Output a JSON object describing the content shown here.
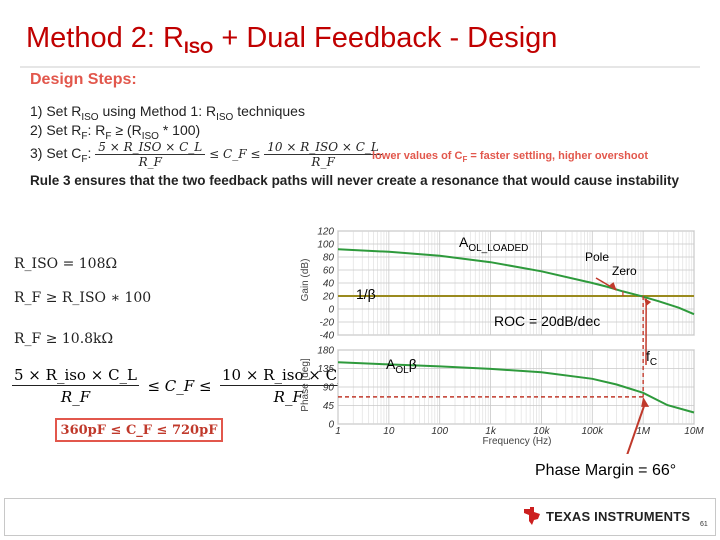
{
  "title": {
    "main": "Method 2: R",
    "sub": "ISO",
    "rest": " + Dual Feedback - Design"
  },
  "steps": {
    "heading": "Design Steps:",
    "step1": {
      "a": "1) Set R",
      "sub1": "ISO",
      "b": " using Method 1: R",
      "sub2": "ISO",
      "c": " techniques"
    },
    "step2": {
      "a": "2)  Set R",
      "sub1": "F",
      "b": ": R",
      "sub2": "F",
      "c": " ≥ (R",
      "sub3": "ISO",
      "d": " * 100)"
    },
    "step3": {
      "a": "3)  Set C",
      "sub1": "F",
      "colon": ":",
      "left_num": "5 × R_ISO × C_L",
      "left_den": "R_F",
      "mid": "≤ C_F ≤",
      "right_num": "10 × R_ISO × C_L",
      "right_den": "R_F"
    },
    "lower_values": "lower values of C",
    "lower_values_sub": "F",
    "lower_values_rest": " = faster settling, higher overshoot",
    "rule3": "Rule 3 ensures that the two feedback paths will never create a resonance that would cause instability"
  },
  "math": {
    "riso": "R_ISO = 108Ω",
    "rf_ge": "R_F ≥ R_ISO ∗ 100",
    "rf_val": "R_F ≥ 10.8kΩ",
    "cf_left_num": "5 × R_iso × C_L",
    "cf_left_den": "R_F",
    "cf_mid": "≤ C_F ≤",
    "cf_right_num": "10 × R_iso × C_L",
    "cf_right_den": "R_F",
    "result": "360pF  ≤  C_F  ≤  720pF"
  },
  "chart_data": [
    {
      "type": "line",
      "title": "",
      "ylabel": "Gain (dB)",
      "yticks": [
        "120",
        "100",
        "80",
        "60",
        "40",
        "20",
        "0",
        "-20",
        "-40"
      ],
      "ylim": [
        -40,
        120
      ],
      "xlim": [
        1,
        10000000
      ],
      "x_scale": "log",
      "grid": true,
      "series": [
        {
          "name": "AOL_LOADED",
          "color": "#2e9a3c",
          "x": [
            1,
            10,
            100,
            1000,
            10000,
            100000,
            200000,
            400000,
            800000,
            1000000,
            2000000,
            5000000,
            10000000
          ],
          "y": [
            92,
            88,
            82,
            72,
            58,
            40,
            34,
            27,
            21,
            19,
            12,
            2,
            -8
          ]
        },
        {
          "name": "1/β",
          "color": "#9a8a1e",
          "x": [
            1,
            10000000
          ],
          "y": [
            20,
            20
          ]
        }
      ]
    },
    {
      "type": "line",
      "title": "",
      "ylabel": "Phase [deg]",
      "xlabel": "Frequency (Hz)",
      "yticks": [
        "180",
        "135",
        "90",
        "45",
        "0"
      ],
      "ylim": [
        0,
        180
      ],
      "xticks": [
        "1",
        "10",
        "100",
        "1k",
        "10k",
        "100k",
        "1M",
        "10M"
      ],
      "xlim": [
        1,
        10000000
      ],
      "x_scale": "log",
      "grid": true,
      "series": [
        {
          "name": "AOLβ",
          "color": "#2e9a3c",
          "x": [
            1,
            10,
            100,
            1000,
            10000,
            100000,
            300000,
            1000000,
            3000000,
            10000000
          ],
          "y": [
            150,
            145,
            140,
            134,
            126,
            110,
            96,
            76,
            46,
            28
          ]
        }
      ]
    }
  ],
  "annotations": {
    "aol_loaded": "A",
    "aol_loaded_sub": "OL_LOADED",
    "pole": "Pole",
    "zero": "Zero",
    "one_over_beta": "1/β",
    "roc": "ROC = 20dB/dec",
    "aol_beta": "A",
    "aol_beta_sub": "OL",
    "aol_beta_end": "β",
    "fc": "f",
    "fc_sub": "C",
    "phase_margin": "Phase Margin = 66°"
  },
  "footer": {
    "brand": "TEXAS INSTRUMENTS",
    "page": "61"
  },
  "colors": {
    "title": "#c00000",
    "accent": "#e2574c",
    "curve": "#2e9a3c",
    "beta": "#9a8a1e",
    "marker": "#c0392b"
  }
}
